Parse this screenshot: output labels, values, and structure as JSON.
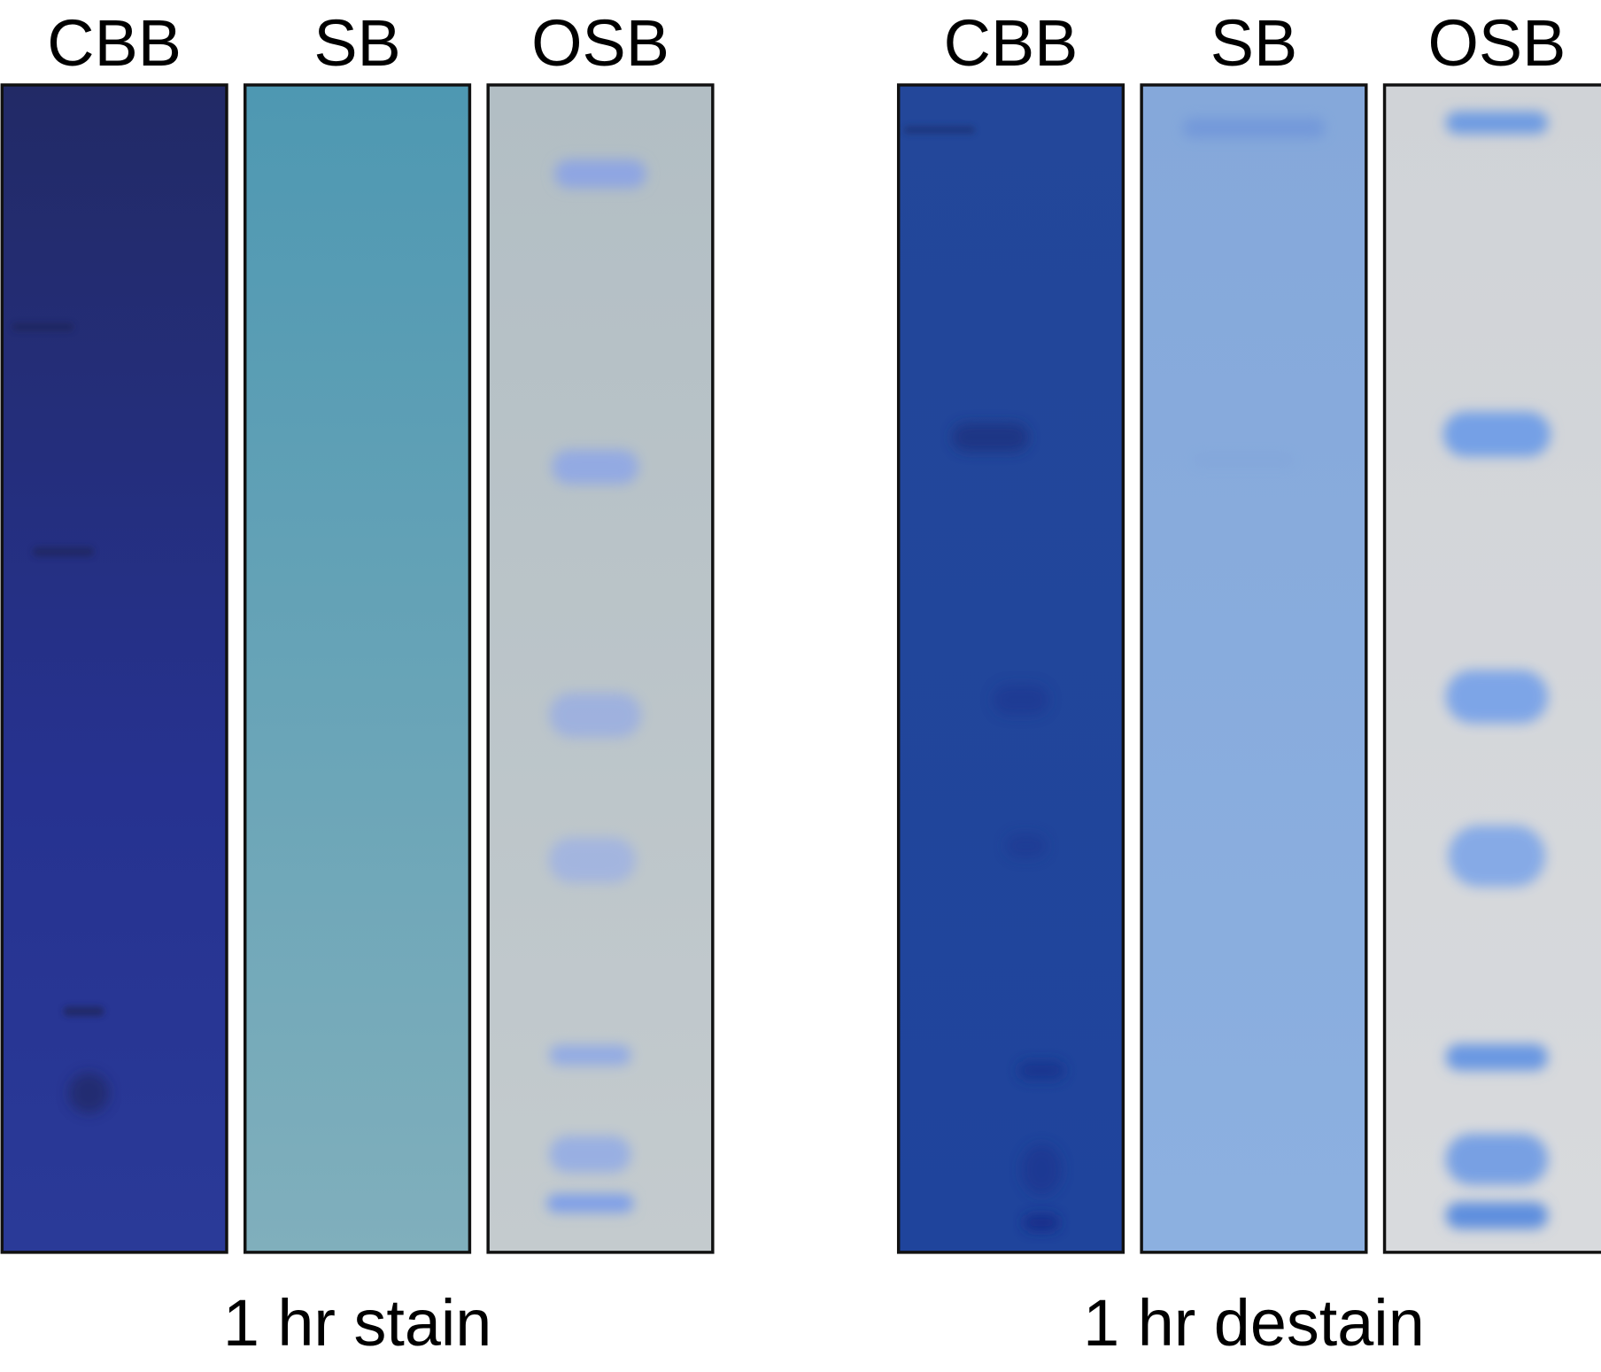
{
  "panels": [
    {
      "lanes": [
        "CBB",
        "SB",
        "OSB"
      ],
      "caption": "1 hr stain"
    },
    {
      "lanes": [
        "CBB",
        "SB",
        "OSB"
      ],
      "caption": "1 hr destain"
    }
  ]
}
